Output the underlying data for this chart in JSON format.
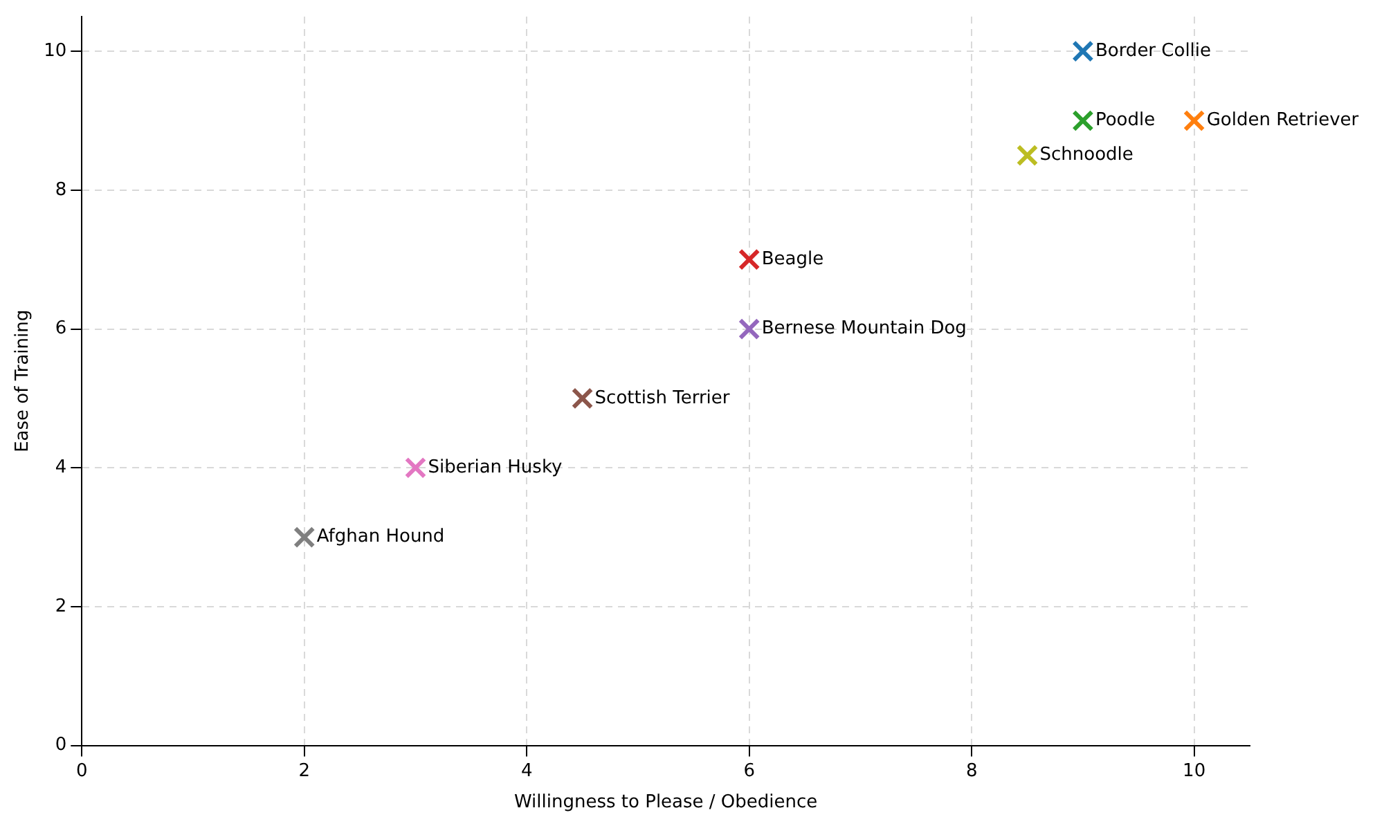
{
  "chart_data": {
    "type": "scatter",
    "xlabel": "Willingness to Please / Obedience",
    "ylabel": "Ease of Training",
    "xlim": [
      0,
      10.5
    ],
    "ylim": [
      0,
      10.5
    ],
    "xticks": [
      0,
      2,
      4,
      6,
      8,
      10
    ],
    "yticks": [
      0,
      2,
      4,
      6,
      8,
      10
    ],
    "grid": true,
    "legend": false,
    "marker": "cross",
    "series": [
      {
        "name": "Border Collie",
        "color": "#1f77b4",
        "x": [
          9
        ],
        "values": [
          10
        ]
      },
      {
        "name": "Golden Retriever",
        "color": "#ff7f0e",
        "x": [
          10
        ],
        "values": [
          9
        ]
      },
      {
        "name": "Poodle",
        "color": "#2ca02c",
        "x": [
          9
        ],
        "values": [
          9
        ]
      },
      {
        "name": "Beagle",
        "color": "#d62728",
        "x": [
          6
        ],
        "values": [
          7
        ]
      },
      {
        "name": "Bernese Mountain Dog",
        "color": "#9467bd",
        "x": [
          6
        ],
        "values": [
          6
        ]
      },
      {
        "name": "Scottish Terrier",
        "color": "#8c564b",
        "x": [
          4.5
        ],
        "values": [
          5
        ]
      },
      {
        "name": "Siberian Husky",
        "color": "#e377c2",
        "x": [
          3
        ],
        "values": [
          4
        ]
      },
      {
        "name": "Afghan Hound",
        "color": "#7f7f7f",
        "x": [
          2
        ],
        "values": [
          3
        ]
      },
      {
        "name": "Schnoodle",
        "color": "#bcbd22",
        "x": [
          8.5
        ],
        "values": [
          8.5
        ]
      }
    ]
  }
}
